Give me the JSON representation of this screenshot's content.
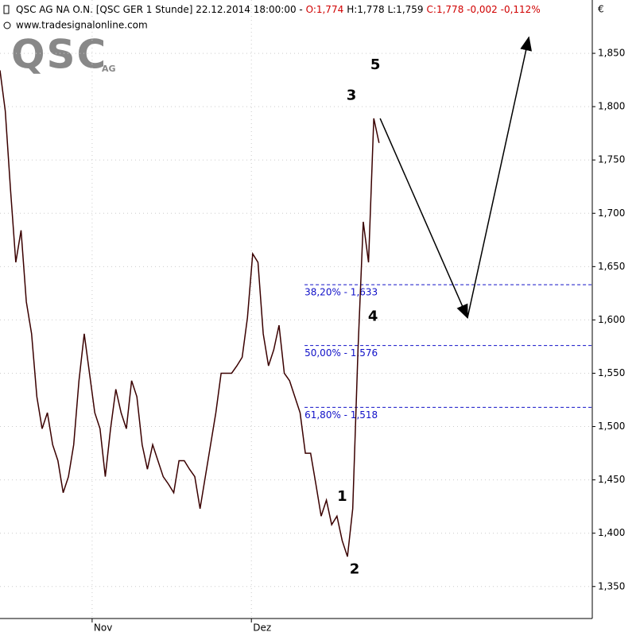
{
  "chart_data": {
    "type": "line",
    "header": {
      "instrument": "QSC AG NA O.N. [QSC GER  1 Stunde] 22.12.2014 18:00:00 - ",
      "open": "O:1,774",
      "high_low": "H:1,778 L:1,759",
      "close": "C:1,778 -0,002 -0,112%",
      "source": "www.tradesignalonline.com",
      "logo": "QSC",
      "logo_suffix": "AG",
      "currency": "€"
    },
    "x": [
      0,
      2,
      4,
      6,
      8,
      10,
      12,
      14,
      16,
      18,
      20,
      22,
      24,
      26,
      28,
      30,
      32,
      34,
      36,
      38,
      40,
      42,
      44,
      46,
      48,
      50,
      52,
      54,
      56,
      58,
      60,
      62,
      64,
      66,
      68,
      70,
      72,
      74,
      76,
      78,
      80,
      82,
      84,
      86,
      88,
      90,
      92,
      94,
      96,
      98,
      100,
      102,
      104,
      106,
      108,
      110,
      112,
      114,
      116,
      118,
      120,
      122,
      124,
      126,
      128,
      130,
      132,
      134,
      136,
      138,
      140,
      142,
      144
    ],
    "series": [
      {
        "name": "QSC",
        "color": "#3a0000",
        "values": [
          1.834,
          1.796,
          1.722,
          1.654,
          1.684,
          1.617,
          1.587,
          1.528,
          1.498,
          1.513,
          1.483,
          1.468,
          1.438,
          1.453,
          1.483,
          1.543,
          1.587,
          1.55,
          1.513,
          1.498,
          1.453,
          1.498,
          1.535,
          1.513,
          1.498,
          1.543,
          1.528,
          1.483,
          1.46,
          1.483,
          1.468,
          1.453,
          1.446,
          1.438,
          1.468,
          1.468,
          1.46,
          1.453,
          1.423,
          1.453,
          1.483,
          1.513,
          1.55,
          1.55,
          1.55,
          1.557,
          1.565,
          1.602,
          1.662,
          1.654,
          1.587,
          1.557,
          1.572,
          1.595,
          1.55,
          1.543,
          1.528,
          1.513,
          1.475,
          1.475,
          1.446,
          1.416,
          1.431,
          1.408,
          1.416,
          1.393,
          1.378,
          1.423,
          1.572,
          1.692,
          1.654,
          1.789,
          1.766
        ]
      }
    ],
    "xlim": [
      0,
      225
    ],
    "xticks": [
      {
        "value": 35,
        "label": "Nov"
      },
      {
        "value": 95.5,
        "label": "Dez"
      }
    ],
    "ylim": [
      1.32,
      1.9
    ],
    "yticks": [
      {
        "value": 1.35,
        "label": "1,350"
      },
      {
        "value": 1.4,
        "label": "1,400"
      },
      {
        "value": 1.45,
        "label": "1,450"
      },
      {
        "value": 1.5,
        "label": "1,500"
      },
      {
        "value": 1.55,
        "label": "1,550"
      },
      {
        "value": 1.6,
        "label": "1,600"
      },
      {
        "value": 1.65,
        "label": "1,650"
      },
      {
        "value": 1.7,
        "label": "1,700"
      },
      {
        "value": 1.75,
        "label": "1,750"
      },
      {
        "value": 1.8,
        "label": "1,800"
      },
      {
        "value": 1.85,
        "label": "1,850"
      }
    ],
    "grid": true,
    "fib_start": 115.7,
    "fib_color": "#1010c8",
    "fib_levels": [
      {
        "value": 1.633,
        "label": "38,20% - 1,633"
      },
      {
        "value": 1.576,
        "label": "50,00% - 1,576"
      },
      {
        "value": 1.518,
        "label": "61,80% - 1,518"
      }
    ],
    "arrows": [
      {
        "x": [
          144.4,
          177.6
        ],
        "y": [
          1.789,
          1.602
        ]
      },
      {
        "x": [
          177.6,
          200.9
        ],
        "y": [
          1.602,
          1.865
        ]
      }
    ],
    "wave_labels": [
      {
        "text": "1",
        "x": 130,
        "y": 1.434
      },
      {
        "text": "2",
        "x": 134.7,
        "y": 1.366
      },
      {
        "text": "3",
        "x": 133.5,
        "y": 1.81
      },
      {
        "text": "4",
        "x": 141.7,
        "y": 1.603
      },
      {
        "text": "5",
        "x": 142.6,
        "y": 1.839
      }
    ]
  }
}
